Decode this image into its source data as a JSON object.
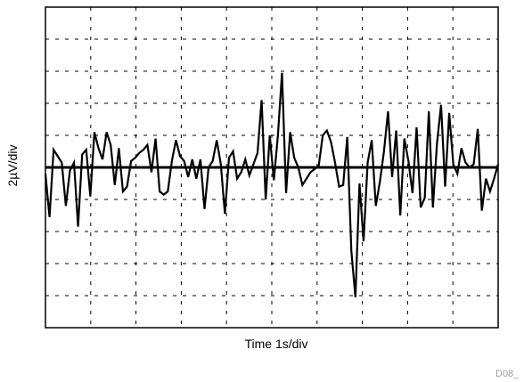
{
  "chart_data": {
    "type": "line",
    "title": "",
    "xlabel": "Time 1s/div",
    "ylabel": "2µV/div",
    "xlim": [
      0,
      10
    ],
    "ylim": [
      -5,
      5
    ],
    "grid": true,
    "baseline": 0,
    "figure_code": "D08_",
    "series": [
      {
        "values": [
          -0.2,
          -1.55,
          0.55,
          0.35,
          0.15,
          -1.2,
          -0.1,
          0.15,
          -1.85,
          0.4,
          0.55,
          -0.9,
          1.1,
          0.6,
          0.25,
          1.1,
          0.7,
          -0.55,
          0.6,
          -0.75,
          -0.6,
          0.2,
          0.3,
          0.45,
          0.55,
          0.7,
          -0.15,
          0.9,
          -0.75,
          -0.85,
          -0.75,
          0.2,
          0.85,
          0.35,
          0.2,
          -0.3,
          0.25,
          -0.35,
          0.25,
          -1.3,
          0.0,
          0.2,
          0.85,
          0.1,
          -1.45,
          0.3,
          0.5,
          -0.35,
          -0.15,
          0.25,
          -0.25,
          0.1,
          0.45,
          2.1,
          -1.0,
          1.0,
          -0.4,
          1.0,
          2.95,
          -0.8,
          1.1,
          0.3,
          0.0,
          -0.55,
          -0.35,
          -0.15,
          -0.05,
          0.05,
          1.0,
          1.15,
          0.8,
          0.15,
          -0.6,
          -0.55,
          0.95,
          -2.6,
          -4.05,
          -0.5,
          -2.3,
          0.15,
          0.85,
          -1.2,
          -0.45,
          0.5,
          1.75,
          -0.3,
          1.15,
          -1.5,
          0.9,
          0.2,
          -0.8,
          1.25,
          -1.25,
          -0.95,
          1.75,
          -1.25,
          0.75,
          1.95,
          -0.6,
          1.7,
          0.1,
          -0.2,
          0.6,
          0.15,
          0.0,
          0.1,
          1.2,
          -1.35,
          -0.35,
          -0.75,
          -0.35,
          0.1
        ]
      }
    ]
  }
}
